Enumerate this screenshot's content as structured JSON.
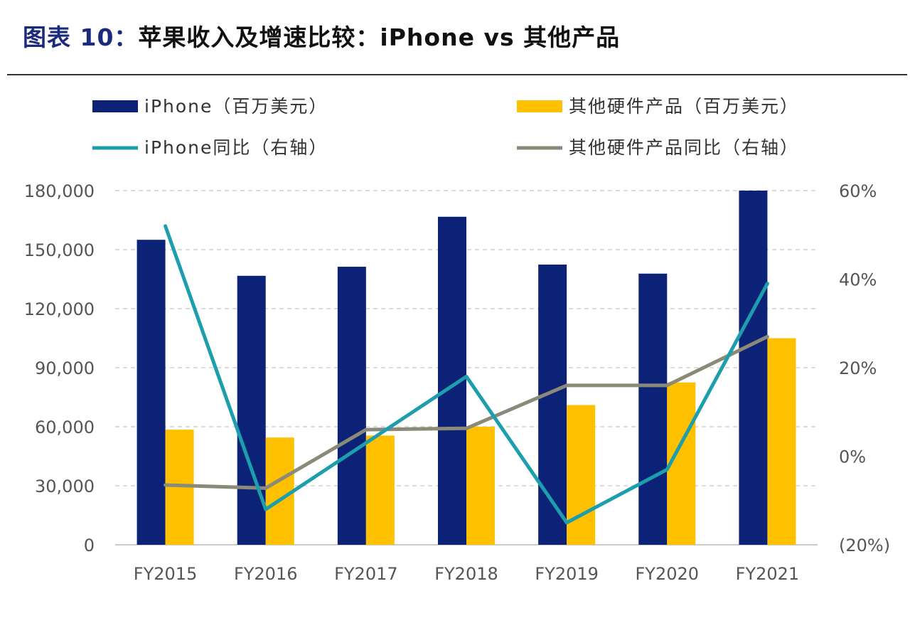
{
  "title": {
    "prefix": "图表 10：",
    "text": "苹果收入及增速比较：iPhone vs 其他产品"
  },
  "colors": {
    "iphone_bar": "#0c2277",
    "other_bar": "#ffc000",
    "iphone_yoy": "#1c9eac",
    "other_yoy": "#8b8a78",
    "grid": "#c8c8c8"
  },
  "chart_data": {
    "type": "bar",
    "categories": [
      "FY2015",
      "FY2016",
      "FY2017",
      "FY2018",
      "FY2019",
      "FY2020",
      "FY2021"
    ],
    "series": [
      {
        "name": "iPhone（百万美元）",
        "type": "bar",
        "axis": "left",
        "values": [
          155000,
          136700,
          141300,
          166700,
          142400,
          137800,
          191900
        ]
      },
      {
        "name": "其他硬件产品（百万美元）",
        "type": "bar",
        "axis": "left",
        "values": [
          58500,
          54500,
          55500,
          60000,
          71000,
          82500,
          105000
        ]
      },
      {
        "name": "iPhone同比（右轴）",
        "type": "line",
        "axis": "right",
        "values": [
          52,
          -12,
          3,
          18,
          -15,
          -3,
          39
        ]
      },
      {
        "name": "其他硬件产品同比（右轴）",
        "type": "line",
        "axis": "right",
        "values": [
          -6.5,
          -7.2,
          6,
          6.3,
          16,
          16,
          27
        ]
      }
    ],
    "y_left": {
      "min": 0,
      "max": 180000,
      "ticks": [
        "0",
        "30,000",
        "60,000",
        "90,000",
        "120,000",
        "150,000",
        "180,000"
      ]
    },
    "y_right": {
      "min": -20,
      "max": 60,
      "ticks": [
        "(20%)",
        "0%",
        "20%",
        "40%",
        "60%"
      ]
    },
    "grid": true,
    "legend_position": "top"
  }
}
